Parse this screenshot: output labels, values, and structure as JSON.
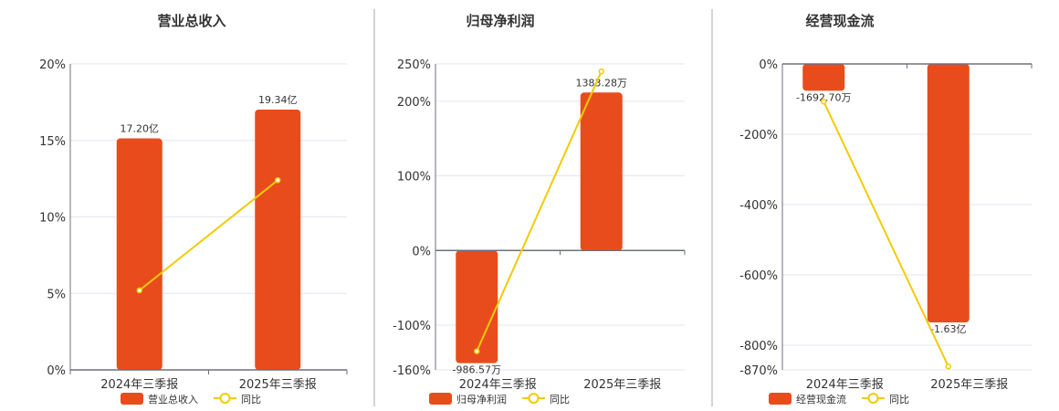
{
  "colors": {
    "bar": "#E84C1D",
    "line": "#F2CB05",
    "grid": "#E3E6EF",
    "axis": "#6E7079",
    "divider": "#AAAAAA"
  },
  "chart_data": [
    {
      "type": "bar+line",
      "title": "营业总收入",
      "categories": [
        "2024年三季报",
        "2025年三季报"
      ],
      "bar_series": {
        "name": "营业总收入",
        "values": [
          17.2,
          19.34
        ],
        "unit": "亿",
        "labels": [
          "17.20亿",
          "19.34亿"
        ]
      },
      "line_series": {
        "name": "同比",
        "values": [
          5.2,
          12.4
        ],
        "unit": "%"
      },
      "ylim": [
        0,
        20
      ],
      "yticks": [
        0,
        5,
        10,
        15,
        20
      ],
      "ytick_labels": [
        "0%",
        "5%",
        "10%",
        "15%",
        "20%"
      ],
      "grid": true,
      "legend": "bottom"
    },
    {
      "type": "bar+line",
      "title": "归母净利润",
      "categories": [
        "2024年三季报",
        "2025年三季报"
      ],
      "bar_series": {
        "name": "归母净利润",
        "values": [
          -986.57,
          1383.28
        ],
        "unit": "万",
        "labels": [
          "-986.57万",
          "1383.28万"
        ]
      },
      "line_series": {
        "name": "同比",
        "values": [
          -135,
          240
        ],
        "unit": "%"
      },
      "ylim": [
        -160,
        250
      ],
      "yticks": [
        -160,
        -100,
        0,
        100,
        200,
        250
      ],
      "ytick_labels": [
        "-160%",
        "-100%",
        "0%",
        "100%",
        "200%",
        "250%"
      ],
      "grid": true,
      "legend": "bottom"
    },
    {
      "type": "bar+line",
      "title": "经营现金流",
      "categories": [
        "2024年三季报",
        "2025年三季报"
      ],
      "bar_series": {
        "name": "经营现金流",
        "values": [
          -1692.7,
          -16300
        ],
        "unit": "万",
        "labels": [
          "-1692.70万",
          "-1.63亿"
        ]
      },
      "line_series": {
        "name": "同比",
        "values": [
          -107,
          -860
        ],
        "unit": "%"
      },
      "ylim": [
        -870,
        0
      ],
      "yticks": [
        -870,
        -800,
        -600,
        -400,
        -200,
        0
      ],
      "ytick_labels": [
        "-870%",
        "-800%",
        "-600%",
        "-400%",
        "-200%",
        "0%"
      ],
      "grid": true,
      "legend": "bottom"
    }
  ]
}
